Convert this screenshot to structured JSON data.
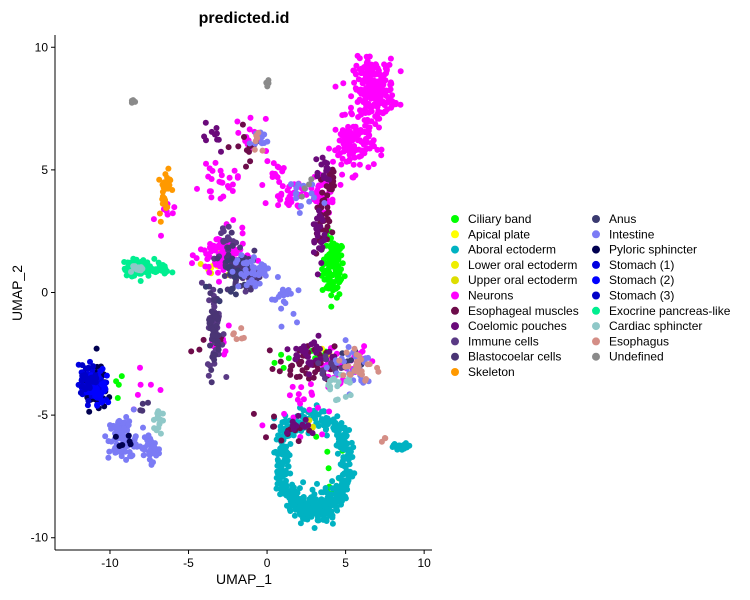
{
  "chart_data": {
    "type": "scatter",
    "title": "predicted.id",
    "xlabel": "UMAP_1",
    "ylabel": "UMAP_2",
    "xlim": [
      -13.5,
      10.5
    ],
    "ylim": [
      -10.5,
      10.5
    ],
    "x_ticks": [
      -10,
      -5,
      0,
      5,
      10
    ],
    "x_tick_labels": [
      "-10",
      "-5",
      "0",
      "5",
      "10"
    ],
    "y_ticks": [
      -10,
      -5,
      0,
      5,
      10
    ],
    "y_tick_labels": [
      "-10",
      "-5",
      "0",
      "5",
      "10"
    ],
    "grid": false,
    "legend_position": "right",
    "series": [
      {
        "name": "Ciliary band",
        "color": "#00ff00",
        "clusters": [
          [
            4.2,
            1.0,
            0.7,
            1.2,
            110
          ],
          [
            3.3,
            -2.6,
            0.6,
            0.4,
            12
          ],
          [
            -10.0,
            -4.0,
            1.0,
            0.8,
            6
          ],
          [
            3.5,
            -7.0,
            2.0,
            2.0,
            10
          ],
          [
            1.0,
            -2.8,
            1.0,
            0.5,
            4
          ]
        ]
      },
      {
        "name": "Apical plate",
        "color": "#ffff00",
        "clusters": [
          [
            -3.0,
            1.5,
            1.2,
            0.8,
            8
          ],
          [
            4.0,
            -2.5,
            1.0,
            0.5,
            3
          ]
        ]
      },
      {
        "name": "Aboral ectoderm",
        "color": "#00b2c2",
        "clusters": [
          [
            3.0,
            -7.0,
            2.4,
            2.2,
            420
          ],
          [
            3.3,
            -8.6,
            1.2,
            0.9,
            60
          ],
          [
            8.5,
            -6.3,
            0.8,
            0.15,
            25
          ],
          [
            1.5,
            -5.5,
            1.0,
            0.5,
            20
          ]
        ]
      },
      {
        "name": "Lower oral ectoderm",
        "color": "#eeee00",
        "clusters": [
          [
            -3.5,
            1.0,
            1.0,
            0.8,
            6
          ],
          [
            4.5,
            -3.0,
            0.8,
            0.5,
            3
          ]
        ]
      },
      {
        "name": "Upper oral ectoderm",
        "color": "#dddd00",
        "clusters": [
          [
            -2.5,
            1.2,
            0.8,
            0.6,
            5
          ],
          [
            3.0,
            -5.5,
            1.0,
            0.8,
            3
          ]
        ]
      },
      {
        "name": "Neurons",
        "color": "#ff00ff",
        "clusters": [
          [
            6.8,
            8.3,
            1.3,
            1.2,
            220
          ],
          [
            5.5,
            6.0,
            1.3,
            1.1,
            110
          ],
          [
            3.5,
            4.0,
            0.8,
            0.6,
            40
          ],
          [
            -2.8,
            1.5,
            1.5,
            1.0,
            90
          ],
          [
            -3.0,
            4.5,
            1.2,
            0.6,
            25
          ],
          [
            1.5,
            4.0,
            1.2,
            0.6,
            30
          ],
          [
            0.5,
            5.0,
            0.6,
            0.4,
            12
          ],
          [
            -1.0,
            6.5,
            1.0,
            0.8,
            15
          ],
          [
            4.5,
            -3.0,
            1.5,
            1.0,
            25
          ],
          [
            2.0,
            -4.5,
            1.8,
            1.2,
            20
          ],
          [
            -6.5,
            3.0,
            0.6,
            0.8,
            8
          ],
          [
            -8.5,
            -3.8,
            1.2,
            1.3,
            6
          ],
          [
            -3.0,
            -2.0,
            1.0,
            1.0,
            10
          ],
          [
            6.0,
            -2.6,
            0.5,
            0.4,
            6
          ]
        ]
      },
      {
        "name": "Esophageal muscles",
        "color": "#6d0c4a",
        "clusters": [
          [
            3.5,
            2.7,
            0.5,
            1.2,
            30
          ],
          [
            2.5,
            -3.0,
            1.8,
            0.8,
            40
          ],
          [
            4.0,
            4.5,
            0.6,
            0.6,
            15
          ],
          [
            -1.0,
            6.0,
            1.2,
            0.8,
            12
          ],
          [
            1.0,
            -5.5,
            1.5,
            0.6,
            15
          ],
          [
            -3.5,
            -1.8,
            0.8,
            0.8,
            8
          ]
        ]
      },
      {
        "name": "Coelomic pouches",
        "color": "#6a0a7a",
        "clusters": [
          [
            3.3,
            2.3,
            0.4,
            1.3,
            25
          ],
          [
            3.0,
            -2.5,
            1.3,
            0.7,
            30
          ],
          [
            3.5,
            5.0,
            0.7,
            0.8,
            15
          ],
          [
            -3.5,
            6.5,
            1.0,
            0.8,
            10
          ],
          [
            2.0,
            -5.3,
            1.3,
            0.5,
            12
          ]
        ]
      },
      {
        "name": "Immune cells",
        "color": "#5a3a85",
        "clusters": [
          [
            -1.5,
            0.8,
            0.9,
            0.6,
            30
          ],
          [
            -3.3,
            -1.5,
            0.5,
            1.8,
            45
          ],
          [
            -2.5,
            2.0,
            1.0,
            0.8,
            20
          ],
          [
            4.0,
            -3.0,
            1.0,
            0.6,
            15
          ]
        ]
      },
      {
        "name": "Blastocoelar cells",
        "color": "#4a3575",
        "clusters": [
          [
            -2.0,
            1.2,
            1.0,
            1.0,
            40
          ],
          [
            -3.4,
            -1.5,
            0.4,
            1.6,
            40
          ],
          [
            -1.0,
            0.5,
            0.8,
            0.5,
            15
          ],
          [
            -8.0,
            -4.5,
            0.4,
            0.4,
            4
          ]
        ]
      },
      {
        "name": "Skeleton",
        "color": "#ff9900",
        "clusters": [
          [
            -6.5,
            4.2,
            0.35,
            1.1,
            30
          ]
        ]
      },
      {
        "name": "Anus",
        "color": "#3a3a70",
        "clusters": [
          [
            -2.5,
            0.7,
            1.0,
            0.7,
            15
          ],
          [
            -1.5,
            1.0,
            0.6,
            0.5,
            10
          ],
          [
            5.5,
            -2.8,
            0.8,
            0.5,
            8
          ]
        ]
      },
      {
        "name": "Intestine",
        "color": "#7b7bf5",
        "clusters": [
          [
            -9.2,
            -6.0,
            0.9,
            0.9,
            90
          ],
          [
            -7.4,
            -6.4,
            0.5,
            0.5,
            40
          ],
          [
            -1.0,
            0.8,
            1.2,
            0.8,
            40
          ],
          [
            1.0,
            -0.2,
            0.8,
            0.8,
            20
          ],
          [
            2.0,
            4.0,
            1.0,
            0.7,
            15
          ],
          [
            -0.5,
            6.3,
            0.6,
            0.5,
            10
          ],
          [
            5.5,
            -3.0,
            1.5,
            1.0,
            30
          ]
        ]
      },
      {
        "name": "Pyloric sphincter",
        "color": "#000050",
        "clusters": [
          [
            -11.0,
            -3.9,
            0.8,
            0.9,
            80
          ],
          [
            -9.0,
            -6.2,
            0.6,
            0.3,
            6
          ]
        ]
      },
      {
        "name": "Stomach (1)",
        "color": "#0000e0",
        "clusters": [
          [
            -11.2,
            -3.7,
            0.8,
            0.8,
            60
          ]
        ]
      },
      {
        "name": "Stomach (2)",
        "color": "#0000ff",
        "clusters": [
          [
            -10.7,
            -3.9,
            0.7,
            0.7,
            40
          ]
        ]
      },
      {
        "name": "Stomach (3)",
        "color": "#0000c8",
        "clusters": [
          [
            -11.4,
            -3.5,
            0.6,
            0.6,
            30
          ]
        ]
      },
      {
        "name": "Exocrine pancreas-like",
        "color": "#00ee90",
        "clusters": [
          [
            -8.3,
            1.0,
            0.8,
            0.35,
            80
          ],
          [
            -7.0,
            1.0,
            0.8,
            0.3,
            25
          ]
        ]
      },
      {
        "name": "Cardiac sphincter",
        "color": "#8fc8c8",
        "clusters": [
          [
            -7.0,
            -5.2,
            0.3,
            0.6,
            15
          ],
          [
            4.5,
            -3.8,
            1.0,
            0.6,
            20
          ],
          [
            -8.3,
            1.0,
            0.5,
            0.3,
            10
          ]
        ]
      },
      {
        "name": "Esophagus",
        "color": "#d48e86",
        "clusters": [
          [
            5.8,
            -3.0,
            1.0,
            0.8,
            30
          ],
          [
            -1.8,
            -1.8,
            0.4,
            0.4,
            6
          ],
          [
            -0.5,
            6.0,
            0.5,
            0.5,
            6
          ],
          [
            7.5,
            -6.0,
            0.3,
            0.2,
            3
          ]
        ]
      },
      {
        "name": "Undefined",
        "color": "#8a8a8a",
        "clusters": [
          [
            -8.5,
            7.8,
            0.15,
            0.1,
            6
          ],
          [
            0.0,
            8.5,
            0.2,
            0.3,
            4
          ],
          [
            2.5,
            4.5,
            0.5,
            0.5,
            4
          ]
        ]
      }
    ]
  }
}
